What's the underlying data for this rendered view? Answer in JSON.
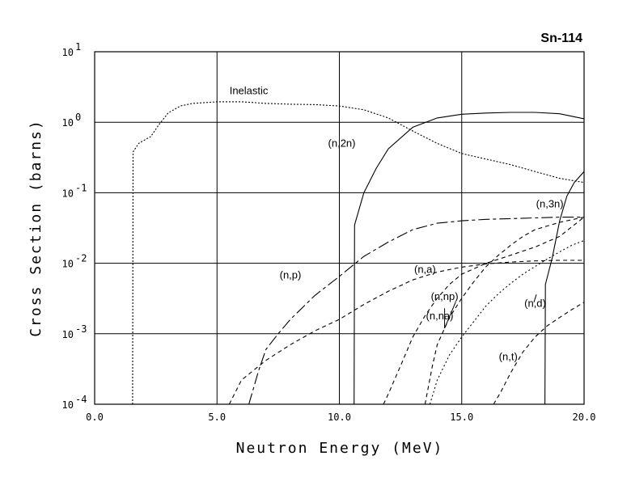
{
  "chart_data": {
    "type": "line",
    "title": "Sn-114",
    "xlabel": "Neutron Energy (MeV)",
    "ylabel": "Cross Section (barns)",
    "xlim": [
      0,
      20
    ],
    "ylim": [
      0.0001,
      10
    ],
    "yscale": "log",
    "grid": true,
    "x_ticks": [
      "0.0",
      "5.0",
      "10.0",
      "15.0",
      "20.0"
    ],
    "y_ticks": [
      {
        "base": "10",
        "exp": "1"
      },
      {
        "base": "10",
        "exp": "0"
      },
      {
        "base": "10",
        "exp": "-1"
      },
      {
        "base": "10",
        "exp": "-2"
      },
      {
        "base": "10",
        "exp": "-3"
      },
      {
        "base": "10",
        "exp": "-4"
      }
    ],
    "series": [
      {
        "name": "Inelastic",
        "dash": "2,2",
        "points": [
          [
            1.55,
            0.0001
          ],
          [
            1.57,
            0.38
          ],
          [
            1.8,
            0.5
          ],
          [
            2.3,
            0.63
          ],
          [
            2.6,
            0.9
          ],
          [
            3,
            1.35
          ],
          [
            3.5,
            1.7
          ],
          [
            4,
            1.85
          ],
          [
            5,
            1.95
          ],
          [
            6,
            1.95
          ],
          [
            7,
            1.85
          ],
          [
            8,
            1.8
          ],
          [
            9,
            1.78
          ],
          [
            10,
            1.7
          ],
          [
            11,
            1.5
          ],
          [
            12,
            1.15
          ],
          [
            13,
            0.75
          ],
          [
            14,
            0.5
          ],
          [
            15,
            0.36
          ],
          [
            16,
            0.3
          ],
          [
            17,
            0.25
          ],
          [
            18,
            0.2
          ],
          [
            19,
            0.16
          ],
          [
            20,
            0.14
          ]
        ]
      },
      {
        "name": "(n,2n)",
        "dash": "",
        "points": [
          [
            10.6,
            0.0001
          ],
          [
            10.62,
            0.035
          ],
          [
            11,
            0.1
          ],
          [
            11.5,
            0.22
          ],
          [
            12,
            0.42
          ],
          [
            13,
            0.85
          ],
          [
            14,
            1.15
          ],
          [
            15,
            1.3
          ],
          [
            16,
            1.35
          ],
          [
            17,
            1.38
          ],
          [
            18,
            1.38
          ],
          [
            19,
            1.32
          ],
          [
            20,
            1.12
          ]
        ]
      },
      {
        "name": "(n,3n)",
        "dash": "",
        "points": [
          [
            18.4,
            0.0001
          ],
          [
            18.42,
            0.005
          ],
          [
            18.7,
            0.012
          ],
          [
            19,
            0.04
          ],
          [
            19.3,
            0.09
          ],
          [
            19.6,
            0.14
          ],
          [
            20,
            0.2
          ]
        ]
      },
      {
        "name": "(n,p)",
        "dash": "14,4,4,4",
        "points": [
          [
            6.3,
            0.0001
          ],
          [
            6.7,
            0.0003
          ],
          [
            7,
            0.0006
          ],
          [
            7.5,
            0.001
          ],
          [
            8,
            0.0016
          ],
          [
            9,
            0.0035
          ],
          [
            10,
            0.0065
          ],
          [
            11,
            0.0125
          ],
          [
            12,
            0.02
          ],
          [
            13,
            0.03
          ],
          [
            14,
            0.037
          ],
          [
            15,
            0.04
          ],
          [
            16,
            0.042
          ],
          [
            17,
            0.043
          ],
          [
            18,
            0.044
          ],
          [
            19,
            0.045
          ],
          [
            20,
            0.045
          ]
        ]
      },
      {
        "name": "(n,a)",
        "dash": "5,4",
        "points": [
          [
            5.5,
            0.0001
          ],
          [
            6,
            0.00022
          ],
          [
            7,
            0.00042
          ],
          [
            8,
            0.0007
          ],
          [
            9,
            0.0011
          ],
          [
            10,
            0.0016
          ],
          [
            11,
            0.0026
          ],
          [
            12,
            0.004
          ],
          [
            13,
            0.0058
          ],
          [
            14,
            0.0075
          ],
          [
            15,
            0.0088
          ],
          [
            16,
            0.0098
          ],
          [
            17,
            0.0104
          ],
          [
            18,
            0.0108
          ],
          [
            19,
            0.011
          ],
          [
            20,
            0.011
          ]
        ]
      },
      {
        "name": "(n,np)",
        "dash": "5,4",
        "points": [
          [
            13.5,
            0.0001
          ],
          [
            13.8,
            0.00035
          ],
          [
            14,
            0.0007
          ],
          [
            14.5,
            0.0017
          ],
          [
            15,
            0.0032
          ],
          [
            15.5,
            0.0055
          ],
          [
            16,
            0.009
          ],
          [
            16.5,
            0.013
          ],
          [
            17,
            0.018
          ],
          [
            17.5,
            0.024
          ],
          [
            18,
            0.03
          ],
          [
            19,
            0.038
          ],
          [
            20,
            0.045
          ]
        ]
      },
      {
        "name": "(n,na)",
        "dash": "5,4",
        "points": [
          [
            11.8,
            0.0001
          ],
          [
            12,
            0.00014
          ],
          [
            12.5,
            0.00035
          ],
          [
            13,
            0.0009
          ],
          [
            13.5,
            0.0018
          ],
          [
            14,
            0.0032
          ],
          [
            14.5,
            0.005
          ],
          [
            15,
            0.007
          ],
          [
            16,
            0.01
          ],
          [
            17,
            0.013
          ],
          [
            18,
            0.017
          ],
          [
            19,
            0.024
          ],
          [
            20,
            0.045
          ]
        ]
      },
      {
        "name": "(n,d)",
        "dash": "2,3",
        "points": [
          [
            13.7,
            0.0001
          ],
          [
            14,
            0.00022
          ],
          [
            14.5,
            0.0005
          ],
          [
            15,
            0.0009
          ],
          [
            15.5,
            0.0015
          ],
          [
            16,
            0.0025
          ],
          [
            16.5,
            0.0037
          ],
          [
            17,
            0.0052
          ],
          [
            17.5,
            0.007
          ],
          [
            18,
            0.009
          ],
          [
            18.5,
            0.0115
          ],
          [
            19,
            0.0145
          ],
          [
            19.5,
            0.018
          ],
          [
            20,
            0.021
          ]
        ]
      },
      {
        "name": "(n,t)",
        "dash": "5,4",
        "points": [
          [
            16.3,
            0.0001
          ],
          [
            16.6,
            0.00015
          ],
          [
            17,
            0.00028
          ],
          [
            17.5,
            0.00055
          ],
          [
            18,
            0.0009
          ],
          [
            18.5,
            0.0013
          ],
          [
            19,
            0.0017
          ],
          [
            19.5,
            0.0022
          ],
          [
            20,
            0.0028
          ]
        ]
      }
    ],
    "annotations": [
      {
        "text": "Inelastic",
        "x": 6.3,
        "y": 2.5
      },
      {
        "text": "(n,2n)",
        "x": 10.1,
        "y": 0.45
      },
      {
        "text": "(n,3n)",
        "x": 18.6,
        "y": 0.062
      },
      {
        "text": "(n,p)",
        "x": 8.0,
        "y": 0.0061
      },
      {
        "text": "(n,a)",
        "x": 13.5,
        "y": 0.0073
      },
      {
        "text": "(n,np)",
        "x": 14.3,
        "y": 0.003
      },
      {
        "text": "(n,na)",
        "x": 14.1,
        "y": 0.0016
      },
      {
        "text": "(n,d)",
        "x": 18.0,
        "y": 0.0024
      },
      {
        "text": "(n,t)",
        "x": 16.9,
        "y": 0.00042
      }
    ],
    "pointers": [
      {
        "from": [
          14.3,
          0.0023
        ],
        "to": [
          14.3,
          0.0012
        ]
      },
      {
        "from": [
          14.3,
          0.0012
        ],
        "to": [
          14.75,
          0.0028
        ]
      },
      {
        "from": [
          18.05,
          0.0036
        ],
        "to": [
          17.95,
          0.0028
        ]
      }
    ]
  }
}
